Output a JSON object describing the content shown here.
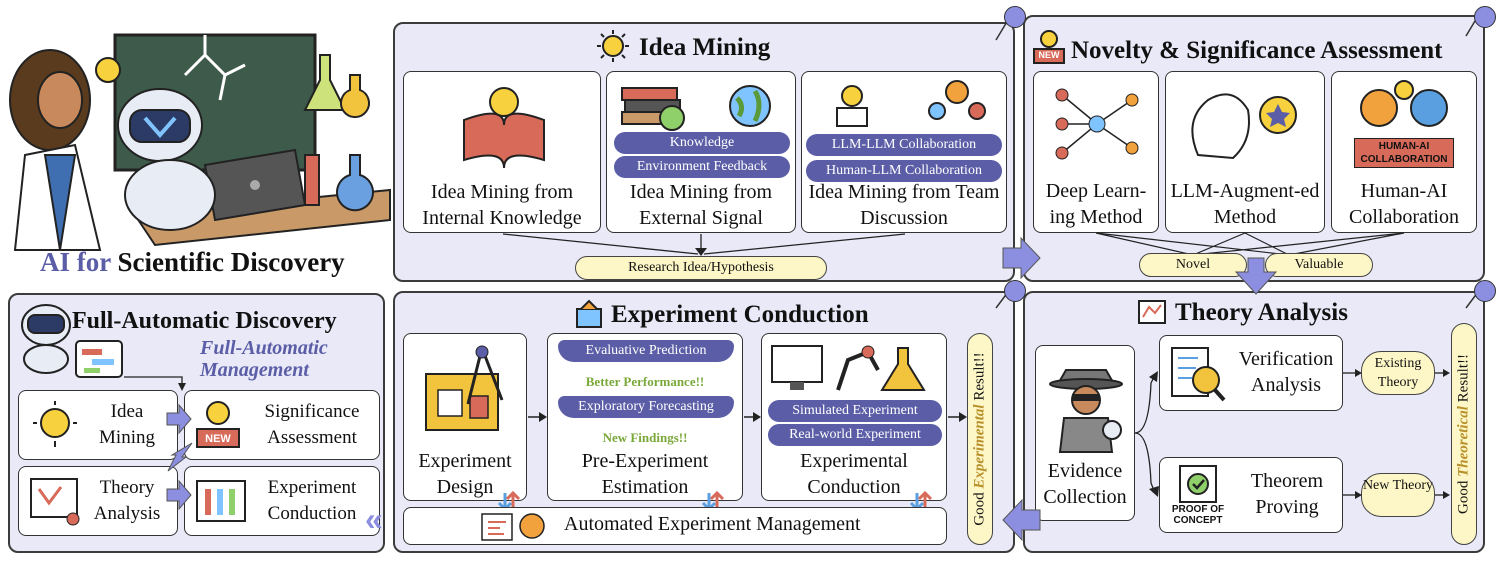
{
  "hero": {
    "prefix": "AI for",
    "title": "Scientific Discovery"
  },
  "idea_mining": {
    "title": "Idea Mining",
    "cards": [
      {
        "label": "Idea Mining from Internal Knowledge"
      },
      {
        "label": "Idea Mining from External Signal",
        "tags": [
          "Knowledge",
          "Environment Feedback"
        ]
      },
      {
        "label": "Idea Mining from Team Discussion",
        "tags": [
          "LLM-LLM Collaboration",
          "Human-LLM Collaboration"
        ]
      }
    ],
    "output": "Research Idea/Hypothesis"
  },
  "novelty": {
    "title": "Novelty & Significance Assessment",
    "badge": "NEW",
    "cards": [
      {
        "label": "Deep Learn-ing Method"
      },
      {
        "label": "LLM-Augment-ed Method"
      },
      {
        "label": "Human-AI Collaboration",
        "icon_text": "HUMAN-AI COLLABORATION"
      }
    ],
    "outputs": [
      "Novel",
      "Valuable"
    ]
  },
  "full_auto": {
    "title": "Full-Automatic Discovery",
    "subtitle": "Full-Automatic Management",
    "modules": [
      {
        "label": "Idea Mining"
      },
      {
        "label": "Significance Assessment",
        "badge": "NEW"
      },
      {
        "label": "Theory Analysis"
      },
      {
        "label": "Experiment Conduction"
      }
    ]
  },
  "experiment": {
    "title": "Experiment Conduction",
    "design": "Experiment Design",
    "pre": {
      "label": "Pre-Experiment Estimation",
      "tags": [
        "Evaluative Prediction",
        "Exploratory Forecasting"
      ],
      "notes": [
        "Better Performance!!",
        "New Findings!!"
      ]
    },
    "conduction": {
      "label": "Experimental Conduction",
      "tags": [
        "Simulated Experiment",
        "Real-world Experiment"
      ]
    },
    "management": "Automated Experiment Management",
    "result": {
      "pre": "Good",
      "em": "Experimental",
      "post": "Result!!"
    }
  },
  "theory": {
    "title": "Theory Analysis",
    "evidence": "Evidence Collection",
    "verification": "Verification Analysis",
    "proving": "Theorem Proving",
    "proof_badge": "PROOF OF CONCEPT",
    "existing": "Existing Theory",
    "new": "New Theory",
    "result": {
      "pre": "Good",
      "em": "Theoretical",
      "post": "Result!!"
    }
  },
  "colors": {
    "panel": "#e9e9f8",
    "accent": "#5b5ea6",
    "hero_prefix": "#5b5ea6",
    "highlight": "#b8902a",
    "note_green": "#7aa83a"
  }
}
